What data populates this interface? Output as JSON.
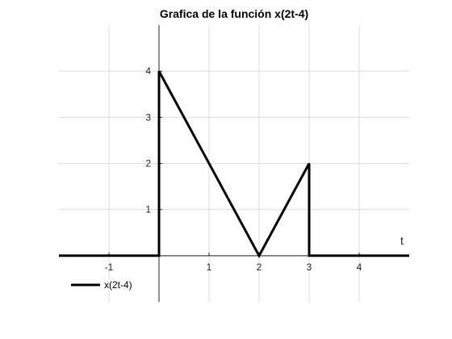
{
  "chart_data": {
    "type": "line",
    "title": "Grafica de la función x(2t-4)",
    "xlabel": "t",
    "ylabel": "",
    "xlim": [
      -2,
      5
    ],
    "ylim": [
      -1,
      5
    ],
    "xticks": [
      -1,
      1,
      2,
      3,
      4
    ],
    "xtick_labels": [
      "-1",
      "1",
      "2",
      "3",
      "4"
    ],
    "yticks": [
      1,
      2,
      3,
      4
    ],
    "ytick_labels": [
      "1",
      "2",
      "3",
      "4"
    ],
    "grid": true,
    "legend_position": "bottom-left",
    "series": [
      {
        "name": "x(2t-4)",
        "color": "#000000",
        "x": [
          -2,
          0,
          0,
          2,
          3,
          3,
          5
        ],
        "y": [
          0,
          0,
          4,
          0,
          2,
          0,
          0
        ]
      }
    ]
  }
}
